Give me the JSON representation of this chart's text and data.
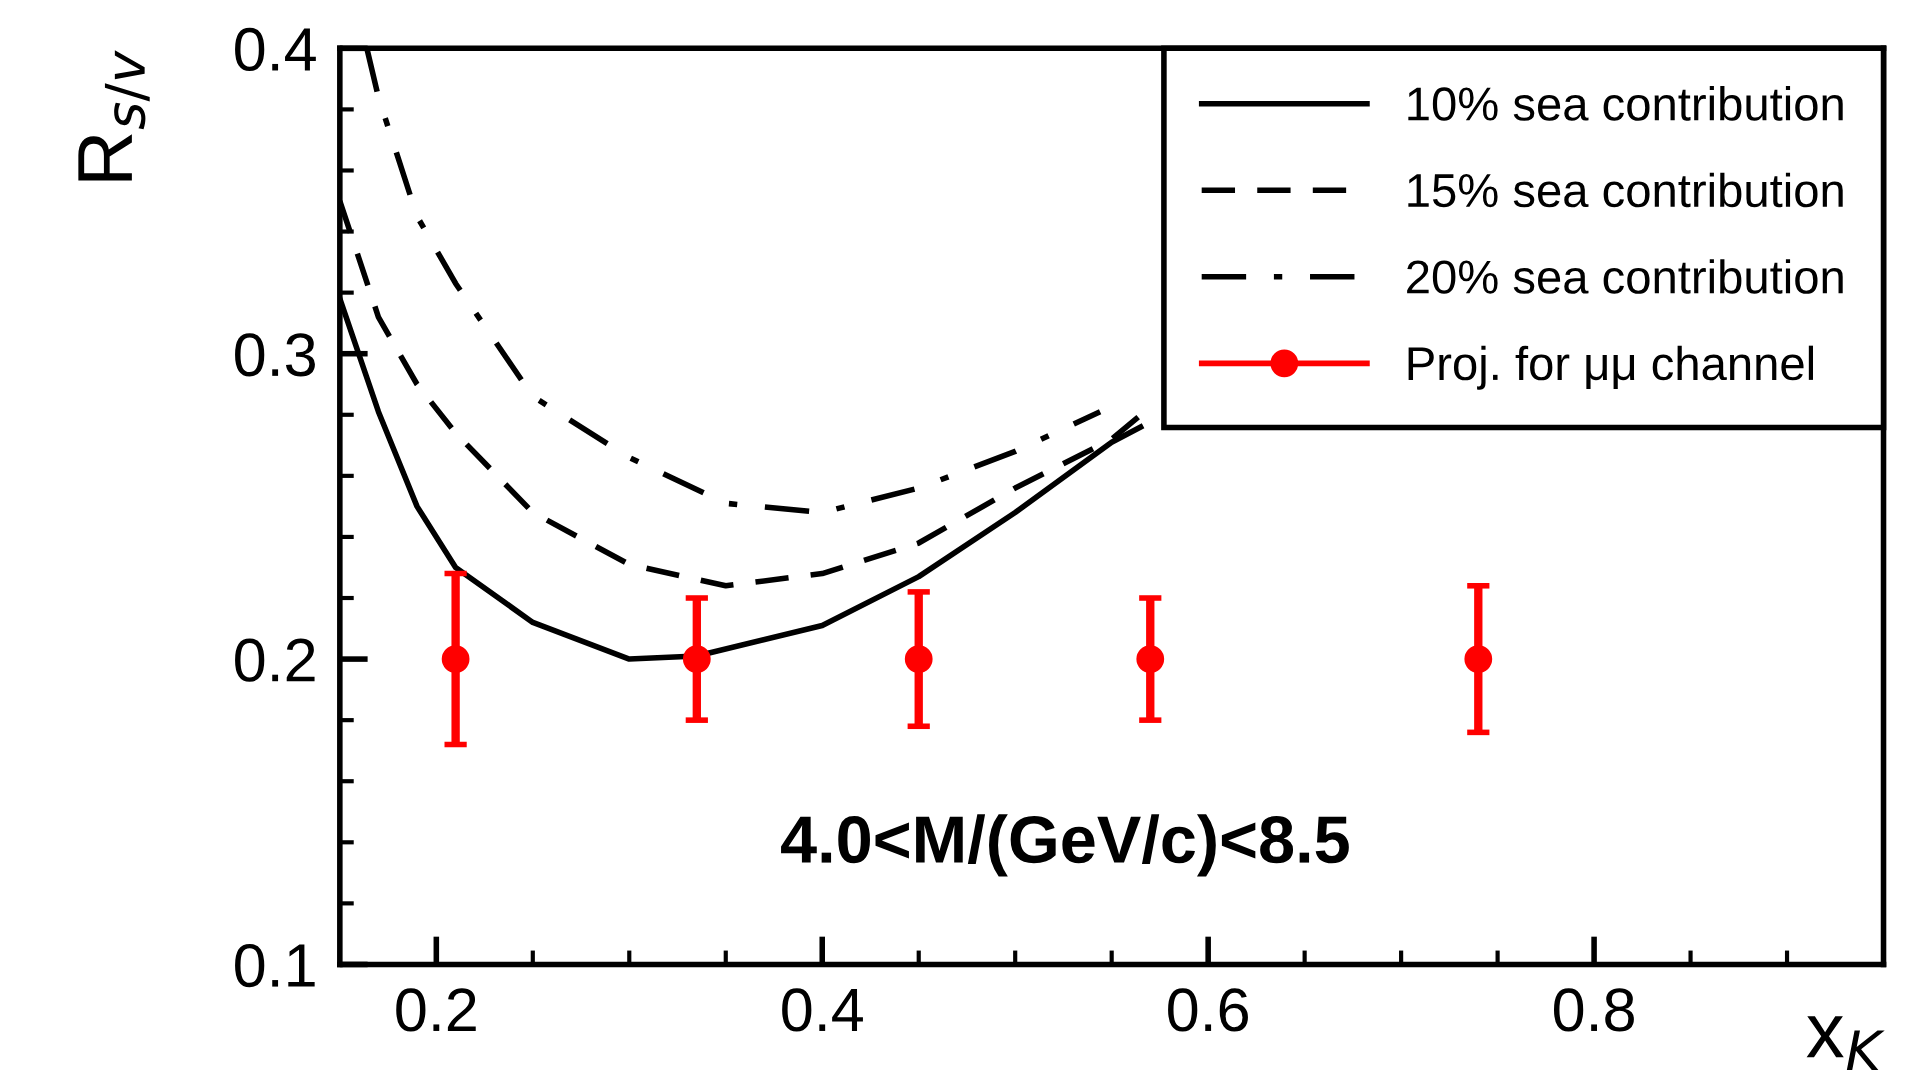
{
  "chart_data": {
    "type": "line",
    "xlabel": "x$_{K}$",
    "ylabel": "R$_{s/v}$",
    "xlim": [
      0.15,
      0.95
    ],
    "ylim": [
      0.1,
      0.4
    ],
    "xticks": [
      0.2,
      0.4,
      0.6,
      0.8
    ],
    "yticks": [
      0.1,
      0.2,
      0.3,
      0.4
    ],
    "grid": false,
    "legend": "top right",
    "annotations": [
      "4.0<M/(GeV/c)<8.5"
    ],
    "series": [
      {
        "name": "10% sea contribution",
        "color": "#000000",
        "line_style": "solid",
        "x": [
          0.15,
          0.17,
          0.19,
          0.21,
          0.25,
          0.3,
          0.335,
          0.4,
          0.45,
          0.5,
          0.55,
          0.565
        ],
        "values": [
          0.318,
          0.281,
          0.25,
          0.23,
          0.212,
          0.2,
          0.201,
          0.211,
          0.227,
          0.248,
          0.271,
          0.276
        ]
      },
      {
        "name": "15% sea contribution",
        "color": "#000000",
        "line_style": "dashed",
        "x": [
          0.15,
          0.17,
          0.19,
          0.21,
          0.25,
          0.3,
          0.35,
          0.4,
          0.45,
          0.5,
          0.55,
          0.567
        ],
        "values": [
          0.35,
          0.312,
          0.29,
          0.274,
          0.248,
          0.231,
          0.224,
          0.228,
          0.238,
          0.256,
          0.272,
          0.281
        ]
      },
      {
        "name": "20% sea contribution",
        "color": "#000000",
        "line_style": "dashdot",
        "x": [
          0.164,
          0.17,
          0.19,
          0.21,
          0.25,
          0.3,
          0.35,
          0.4,
          0.45,
          0.5,
          0.544
        ],
        "values": [
          0.4,
          0.384,
          0.345,
          0.323,
          0.286,
          0.266,
          0.251,
          0.248,
          0.256,
          0.268,
          0.281
        ]
      },
      {
        "name": "Proj. for μμ channel",
        "type": "scatter",
        "color": "#ff0000",
        "marker": "circle",
        "x": [
          0.21,
          0.335,
          0.45,
          0.57,
          0.74
        ],
        "values": [
          0.2,
          0.2,
          0.2,
          0.2,
          0.2
        ],
        "errors": [
          0.028,
          0.02,
          0.022,
          0.02,
          0.024
        ]
      }
    ]
  }
}
